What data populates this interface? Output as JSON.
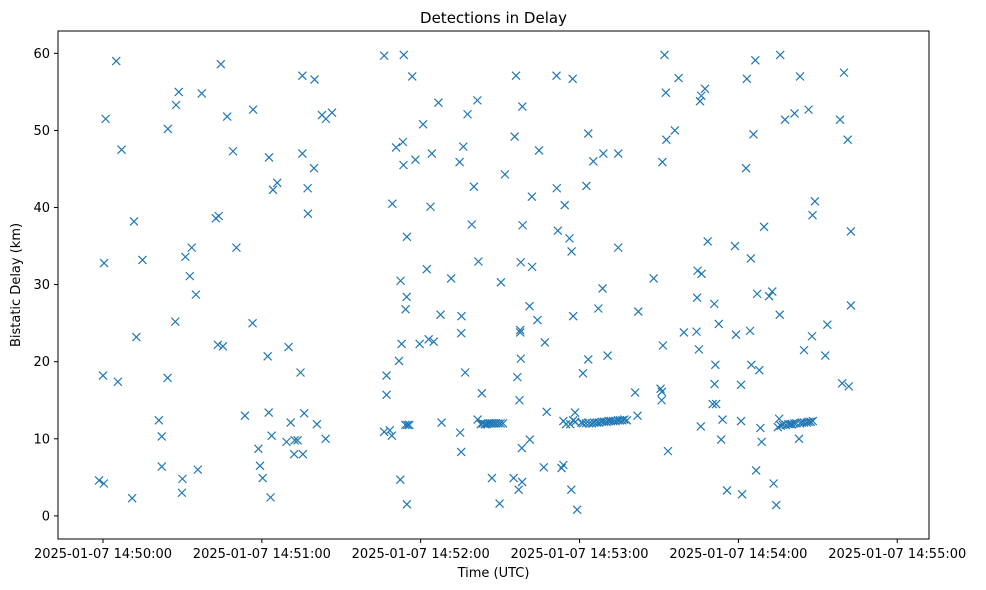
{
  "chart_data": {
    "type": "scatter",
    "title": "Detections in Delay",
    "xlabel": "Time (UTC)",
    "ylabel": "Bistatic Delay (km)",
    "marker": "x",
    "color": "#1f77b4",
    "x_unit": "seconds after 2025-01-07 14:50:00",
    "xlim": [
      -17,
      312
    ],
    "ylim": [
      -3,
      62.9
    ],
    "xticks": [
      {
        "value": 0,
        "label": "2025-01-07 14:50:00"
      },
      {
        "value": 60,
        "label": "2025-01-07 14:51:00"
      },
      {
        "value": 120,
        "label": "2025-01-07 14:52:00"
      },
      {
        "value": 180,
        "label": "2025-01-07 14:53:00"
      },
      {
        "value": 240,
        "label": "2025-01-07 14:54:00"
      },
      {
        "value": 300,
        "label": "2025-01-07 14:55:00"
      }
    ],
    "yticks": [
      {
        "value": 0,
        "label": "0"
      },
      {
        "value": 10,
        "label": "10"
      },
      {
        "value": 20,
        "label": "20"
      },
      {
        "value": 30,
        "label": "30"
      },
      {
        "value": 40,
        "label": "40"
      },
      {
        "value": 50,
        "label": "50"
      },
      {
        "value": 60,
        "label": "60"
      }
    ],
    "series": [
      {
        "name": "Detections",
        "points": [
          [
            -1.5,
            4.6
          ],
          [
            0.3,
            4.2
          ],
          [
            0.0,
            18.2
          ],
          [
            0.4,
            32.8
          ],
          [
            1.0,
            51.5
          ],
          [
            5.0,
            59.0
          ],
          [
            5.6,
            17.4
          ],
          [
            7.0,
            47.5
          ],
          [
            11.0,
            2.3
          ],
          [
            11.7,
            38.2
          ],
          [
            12.6,
            23.2
          ],
          [
            14.9,
            33.2
          ],
          [
            21.1,
            12.4
          ],
          [
            22.2,
            10.3
          ],
          [
            22.2,
            6.4
          ],
          [
            24.4,
            17.9
          ],
          [
            24.5,
            50.2
          ],
          [
            27.3,
            25.2
          ],
          [
            27.6,
            53.3
          ],
          [
            28.6,
            55.0
          ],
          [
            30.0,
            4.8
          ],
          [
            29.8,
            3.0
          ],
          [
            31.1,
            33.6
          ],
          [
            32.8,
            31.1
          ],
          [
            33.5,
            34.8
          ],
          [
            35.1,
            28.7
          ],
          [
            35.8,
            6.0
          ],
          [
            37.3,
            54.8
          ],
          [
            42.6,
            38.6
          ],
          [
            43.4,
            22.2
          ],
          [
            43.7,
            38.9
          ],
          [
            44.5,
            58.6
          ],
          [
            45.3,
            22.0
          ],
          [
            46.9,
            51.8
          ],
          [
            49.1,
            47.3
          ],
          [
            50.4,
            34.8
          ],
          [
            53.6,
            13.0
          ],
          [
            56.5,
            25.0
          ],
          [
            56.7,
            52.7
          ],
          [
            58.7,
            8.7
          ],
          [
            59.3,
            6.5
          ],
          [
            60.3,
            4.9
          ],
          [
            62.2,
            20.7
          ],
          [
            62.6,
            13.4
          ],
          [
            62.7,
            46.5
          ],
          [
            63.3,
            2.4
          ],
          [
            63.7,
            10.4
          ],
          [
            64.2,
            42.3
          ],
          [
            65.8,
            43.2
          ],
          [
            69.3,
            9.6
          ],
          [
            70.1,
            21.9
          ],
          [
            70.9,
            12.1
          ],
          [
            72.2,
            8.0
          ],
          [
            72.4,
            9.8
          ],
          [
            73.5,
            9.8
          ],
          [
            74.6,
            18.6
          ],
          [
            75.5,
            8.0
          ],
          [
            75.3,
            47.0
          ],
          [
            75.3,
            57.1
          ],
          [
            76.0,
            13.3
          ],
          [
            77.3,
            42.5
          ],
          [
            77.4,
            39.2
          ],
          [
            79.7,
            45.1
          ],
          [
            79.9,
            56.6
          ],
          [
            80.8,
            11.9
          ],
          [
            82.7,
            52.0
          ],
          [
            84.1,
            10.0
          ],
          [
            84.2,
            51.5
          ],
          [
            86.5,
            52.3
          ],
          [
            106.2,
            10.9
          ],
          [
            106.2,
            59.7
          ],
          [
            107.1,
            18.2
          ],
          [
            107.1,
            15.7
          ],
          [
            108.3,
            11.1
          ],
          [
            109.1,
            10.4
          ],
          [
            109.3,
            40.5
          ],
          [
            110.7,
            47.8
          ],
          [
            111.8,
            20.1
          ],
          [
            112.3,
            4.7
          ],
          [
            112.4,
            30.5
          ],
          [
            112.8,
            22.3
          ],
          [
            113.3,
            48.5
          ],
          [
            113.6,
            59.8
          ],
          [
            113.5,
            45.5
          ],
          [
            114.2,
            11.8
          ],
          [
            114.3,
            26.8
          ],
          [
            114.7,
            28.4
          ],
          [
            114.8,
            36.2
          ],
          [
            114.8,
            1.5
          ],
          [
            115.0,
            11.8
          ],
          [
            115.7,
            11.8
          ],
          [
            116.8,
            57.0
          ],
          [
            118.0,
            46.2
          ],
          [
            119.6,
            22.3
          ],
          [
            120.9,
            50.8
          ],
          [
            122.3,
            32.0
          ],
          [
            123.0,
            22.9
          ],
          [
            123.7,
            40.1
          ],
          [
            124.2,
            47.0
          ],
          [
            124.9,
            22.6
          ],
          [
            126.7,
            53.6
          ],
          [
            127.5,
            26.1
          ],
          [
            127.9,
            12.1
          ],
          [
            131.5,
            30.8
          ],
          [
            134.7,
            45.9
          ],
          [
            134.9,
            10.8
          ],
          [
            135.3,
            8.3
          ],
          [
            135.3,
            23.7
          ],
          [
            135.4,
            25.9
          ],
          [
            136.1,
            47.9
          ],
          [
            136.8,
            18.6
          ],
          [
            137.7,
            52.1
          ],
          [
            139.3,
            37.8
          ],
          [
            140.1,
            42.7
          ],
          [
            141.4,
            53.9
          ],
          [
            141.5,
            12.5
          ],
          [
            141.8,
            33.0
          ],
          [
            142.7,
            11.9
          ],
          [
            143.1,
            15.9
          ],
          [
            143.5,
            12.0
          ],
          [
            144.2,
            11.9
          ],
          [
            144.9,
            11.9
          ],
          [
            145.6,
            12.0
          ],
          [
            146.3,
            12.0
          ],
          [
            146.9,
            4.9
          ],
          [
            147.0,
            12.0
          ],
          [
            147.8,
            12.0
          ],
          [
            148.5,
            12.0
          ],
          [
            149.4,
            12.0
          ],
          [
            149.8,
            1.6
          ],
          [
            150.2,
            12.0
          ],
          [
            150.3,
            30.3
          ],
          [
            151.1,
            12.0
          ],
          [
            151.8,
            44.3
          ],
          [
            155.1,
            4.9
          ],
          [
            155.5,
            49.2
          ],
          [
            156.0,
            57.1
          ],
          [
            156.5,
            18.0
          ],
          [
            157.0,
            3.4
          ],
          [
            157.3,
            15.0
          ],
          [
            157.6,
            24.1
          ],
          [
            157.6,
            23.8
          ],
          [
            157.8,
            32.9
          ],
          [
            157.8,
            20.4
          ],
          [
            158.2,
            8.8
          ],
          [
            158.3,
            4.4
          ],
          [
            158.4,
            53.1
          ],
          [
            158.5,
            37.7
          ],
          [
            161.1,
            27.2
          ],
          [
            161.2,
            9.9
          ],
          [
            162.0,
            41.4
          ],
          [
            162.1,
            32.3
          ],
          [
            164.1,
            25.4
          ],
          [
            164.7,
            47.4
          ],
          [
            166.5,
            6.3
          ],
          [
            166.9,
            22.5
          ],
          [
            167.6,
            13.5
          ],
          [
            171.3,
            57.1
          ],
          [
            171.4,
            42.5
          ],
          [
            171.8,
            37.0
          ],
          [
            173.2,
            6.2
          ],
          [
            173.9,
            6.6
          ],
          [
            173.9,
            12.3
          ],
          [
            174.4,
            40.3
          ],
          [
            174.9,
            11.9
          ],
          [
            176.2,
            36.0
          ],
          [
            176.5,
            11.9
          ],
          [
            176.9,
            3.4
          ],
          [
            177.0,
            34.3
          ],
          [
            177.4,
            56.7
          ],
          [
            177.6,
            12.4
          ],
          [
            177.6,
            25.9
          ],
          [
            178.3,
            13.4
          ],
          [
            178.4,
            12.2
          ],
          [
            179.1,
            0.8
          ],
          [
            180.7,
            12.1
          ],
          [
            181.3,
            18.5
          ],
          [
            181.3,
            12.0
          ],
          [
            182.4,
            12.0
          ],
          [
            182.6,
            42.8
          ],
          [
            183.3,
            49.6
          ],
          [
            183.6,
            12.0
          ],
          [
            183.3,
            20.3
          ],
          [
            184.6,
            12.0
          ],
          [
            185.5,
            12.1
          ],
          [
            185.2,
            46.0
          ],
          [
            186.5,
            12.1
          ],
          [
            187.1,
            26.9
          ],
          [
            187.4,
            12.1
          ],
          [
            188.4,
            12.2
          ],
          [
            189.0,
            47.0
          ],
          [
            188.7,
            29.5
          ],
          [
            189.3,
            12.2
          ],
          [
            190.2,
            12.2
          ],
          [
            190.6,
            20.8
          ],
          [
            191.0,
            12.3
          ],
          [
            191.8,
            12.3
          ],
          [
            192.7,
            12.3
          ],
          [
            193.6,
            12.3
          ],
          [
            194.5,
            12.4
          ],
          [
            194.6,
            34.8
          ],
          [
            194.6,
            47.0
          ],
          [
            195.3,
            12.4
          ],
          [
            196.2,
            12.4
          ],
          [
            196.9,
            12.5
          ],
          [
            197.9,
            12.4
          ],
          [
            201.0,
            16.0
          ],
          [
            201.9,
            13.0
          ],
          [
            202.2,
            26.5
          ],
          [
            208.0,
            30.8
          ],
          [
            210.6,
            16.5
          ],
          [
            211.1,
            16.1
          ],
          [
            211.0,
            15.0
          ],
          [
            211.3,
            45.9
          ],
          [
            211.5,
            22.1
          ],
          [
            212.1,
            59.8
          ],
          [
            212.6,
            54.9
          ],
          [
            212.8,
            48.8
          ],
          [
            213.4,
            8.4
          ],
          [
            216.0,
            50.0
          ],
          [
            217.4,
            56.8
          ],
          [
            219.4,
            23.8
          ],
          [
            224.2,
            23.9
          ],
          [
            224.4,
            28.3
          ],
          [
            224.6,
            31.8
          ],
          [
            225.1,
            21.6
          ],
          [
            225.5,
            53.8
          ],
          [
            225.8,
            11.6
          ],
          [
            226.0,
            54.5
          ],
          [
            226.1,
            31.4
          ],
          [
            227.4,
            55.4
          ],
          [
            228.4,
            35.6
          ],
          [
            230.3,
            14.5
          ],
          [
            230.9,
            27.5
          ],
          [
            231.0,
            17.1
          ],
          [
            231.3,
            19.6
          ],
          [
            231.6,
            14.5
          ],
          [
            232.6,
            24.9
          ],
          [
            233.5,
            9.9
          ],
          [
            234.0,
            12.5
          ],
          [
            235.7,
            3.3
          ],
          [
            238.7,
            35.0
          ],
          [
            239.1,
            23.5
          ],
          [
            241.0,
            17.0
          ],
          [
            241.0,
            12.3
          ],
          [
            241.4,
            2.8
          ],
          [
            242.9,
            45.1
          ],
          [
            243.2,
            56.7
          ],
          [
            244.4,
            24.0
          ],
          [
            244.7,
            33.4
          ],
          [
            244.9,
            19.6
          ],
          [
            245.7,
            49.5
          ],
          [
            246.4,
            59.1
          ],
          [
            246.7,
            5.9
          ],
          [
            247.1,
            28.8
          ],
          [
            247.9,
            18.9
          ],
          [
            248.3,
            11.4
          ],
          [
            248.8,
            9.6
          ],
          [
            249.7,
            37.5
          ],
          [
            251.6,
            28.5
          ],
          [
            252.8,
            29.1
          ],
          [
            253.3,
            4.2
          ],
          [
            254.3,
            1.4
          ],
          [
            254.9,
            11.5
          ],
          [
            255.4,
            12.6
          ],
          [
            255.6,
            26.1
          ],
          [
            255.8,
            59.8
          ],
          [
            256.0,
            11.7
          ],
          [
            256.8,
            11.8
          ],
          [
            257.6,
            51.4
          ],
          [
            257.9,
            11.8
          ],
          [
            258.9,
            11.9
          ],
          [
            259.7,
            11.9
          ],
          [
            260.3,
            11.9
          ],
          [
            261.2,
            52.2
          ],
          [
            261.1,
            12.0
          ],
          [
            261.9,
            12.0
          ],
          [
            262.9,
            10.0
          ],
          [
            263.3,
            57.0
          ],
          [
            263.3,
            12.0
          ],
          [
            263.9,
            12.1
          ],
          [
            264.8,
            21.5
          ],
          [
            264.8,
            12.1
          ],
          [
            265.8,
            12.1
          ],
          [
            266.5,
            12.2
          ],
          [
            266.5,
            52.7
          ],
          [
            267.3,
            12.2
          ],
          [
            267.8,
            23.3
          ],
          [
            268.1,
            12.3
          ],
          [
            268.0,
            39.0
          ],
          [
            268.9,
            40.8
          ],
          [
            272.8,
            20.8
          ],
          [
            273.6,
            24.8
          ],
          [
            278.4,
            51.4
          ],
          [
            279.2,
            17.2
          ],
          [
            279.9,
            57.5
          ],
          [
            281.3,
            48.8
          ],
          [
            281.7,
            16.8
          ],
          [
            282.5,
            27.3
          ],
          [
            282.5,
            36.9
          ]
        ]
      }
    ]
  }
}
